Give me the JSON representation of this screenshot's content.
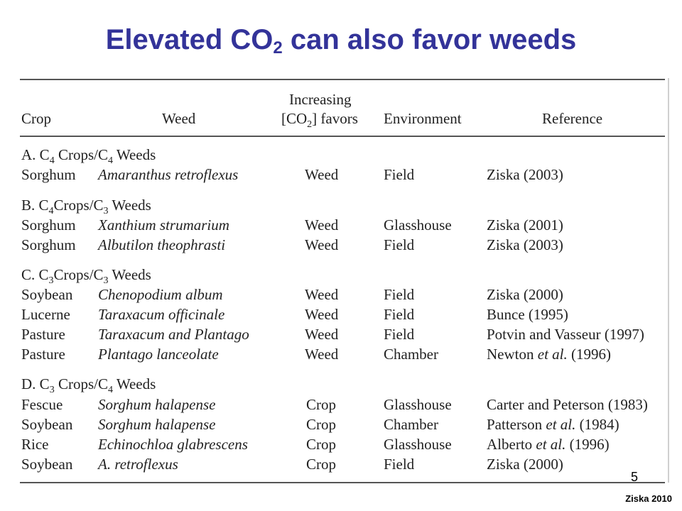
{
  "title": {
    "pre": "Elevated CO",
    "sub": "2",
    "post": " can also favor weeds"
  },
  "headers": {
    "crop": "Crop",
    "weed": "Weed",
    "favors_line1": "Increasing",
    "favors_line2_pre": "[CO",
    "favors_line2_sub": "2",
    "favors_line2_post": "] favors",
    "environment": "Environment",
    "reference": "Reference"
  },
  "groups": [
    {
      "letter": "A. C",
      "s1": "4",
      "mid": " Crops/C",
      "s2": "4",
      "post": " Weeds"
    },
    {
      "letter": "B. C",
      "s1": "4",
      "mid": "Crops/C",
      "s2": "3",
      "post": " Weeds"
    },
    {
      "letter": "C. C",
      "s1": "3",
      "mid": "Crops/C",
      "s2": "3",
      "post": " Weeds"
    },
    {
      "letter": "D. C",
      "s1": "3",
      "mid": " Crops/C",
      "s2": "4",
      "post": " Weeds"
    }
  ],
  "rows": [
    {
      "crop": "Sorghum",
      "weed": "Amaranthus retroflexus",
      "favors": "Weed",
      "env": "Field",
      "ref_pre": "Ziska (2003)",
      "ref_it": "",
      "ref_post": ""
    },
    {
      "crop": "Sorghum",
      "weed": "Xanthium strumarium",
      "favors": "Weed",
      "env": "Glasshouse",
      "ref_pre": "Ziska (2001)",
      "ref_it": "",
      "ref_post": ""
    },
    {
      "crop": "Sorghum",
      "weed": "Albutilon theophrasti",
      "favors": "Weed",
      "env": "Field",
      "ref_pre": "Ziska (2003)",
      "ref_it": "",
      "ref_post": ""
    },
    {
      "crop": "Soybean",
      "weed": "Chenopodium album",
      "favors": "Weed",
      "env": "Field",
      "ref_pre": "Ziska (2000)",
      "ref_it": "",
      "ref_post": ""
    },
    {
      "crop": "Lucerne",
      "weed": "Taraxacum officinale",
      "favors": "Weed",
      "env": "Field",
      "ref_pre": "Bunce (1995)",
      "ref_it": "",
      "ref_post": ""
    },
    {
      "crop": "Pasture",
      "weed": "Taraxacum and Plantago",
      "favors": "Weed",
      "env": "Field",
      "ref_pre": "Potvin and Vasseur (1997)",
      "ref_it": "",
      "ref_post": ""
    },
    {
      "crop": "Pasture",
      "weed": "Plantago lanceolate",
      "favors": "Weed",
      "env": "Chamber",
      "ref_pre": "Newton ",
      "ref_it": "et al.",
      "ref_post": " (1996)"
    },
    {
      "crop": "Fescue",
      "weed": "Sorghum halapense",
      "favors": "Crop",
      "env": "Glasshouse",
      "ref_pre": "Carter and Peterson (1983)",
      "ref_it": "",
      "ref_post": ""
    },
    {
      "crop": "Soybean",
      "weed": "Sorghum halapense",
      "favors": "Crop",
      "env": "Chamber",
      "ref_pre": "Patterson ",
      "ref_it": "et al.",
      "ref_post": " (1984)"
    },
    {
      "crop": "Rice",
      "weed": "Echinochloa glabrescens",
      "favors": "Crop",
      "env": "Glasshouse",
      "ref_pre": "Alberto ",
      "ref_it": "et al.",
      "ref_post": " (1996)"
    },
    {
      "crop": "Soybean",
      "weed": "A. retroflexus",
      "favors": "Crop",
      "env": "Field",
      "ref_pre": "Ziska (2000)",
      "ref_it": "",
      "ref_post": ""
    }
  ],
  "page_number": "5",
  "credit": "Ziska 2010"
}
